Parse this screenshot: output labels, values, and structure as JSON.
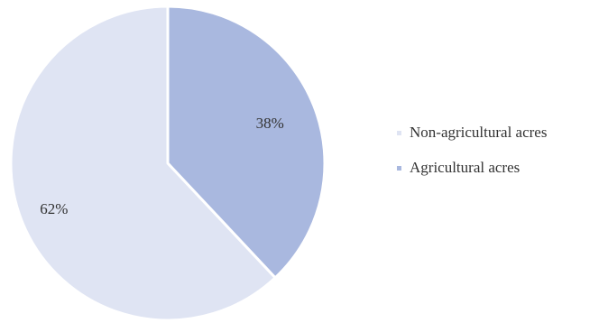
{
  "chart_data": {
    "type": "pie",
    "title": "",
    "slices": [
      {
        "label": "Non-agricultural acres",
        "value": 62,
        "value_label": "62%",
        "color": "#dfe4f3"
      },
      {
        "label": "Agricultural acres",
        "value": 38,
        "value_label": "38%",
        "color": "#a9b8df"
      }
    ],
    "start_angle": "12 o'clock, clockwise",
    "legend": {
      "placement": "right",
      "items": [
        {
          "label": "Non-agricultural acres",
          "color": "#dfe4f3"
        },
        {
          "label": "Agricultural acres",
          "color": "#a9b8df"
        }
      ]
    }
  }
}
